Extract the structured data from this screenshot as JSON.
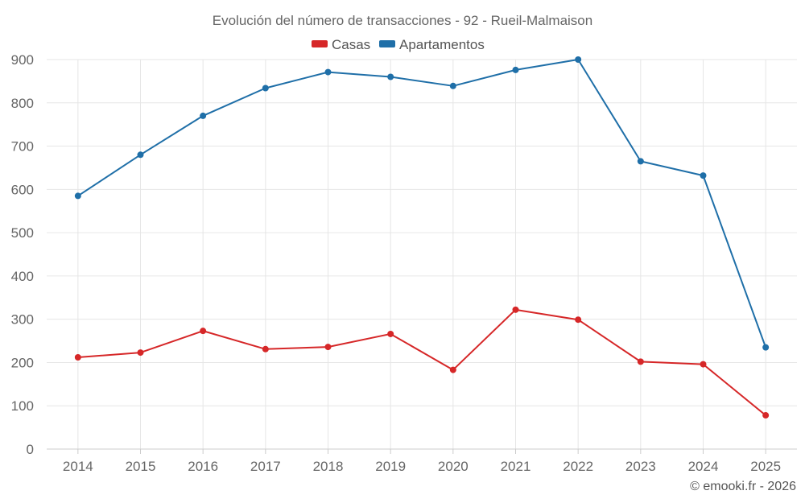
{
  "chart_data": {
    "type": "line",
    "title": "Evolución del número de transacciones - 92 - Rueil-Malmaison",
    "categories": [
      "2014",
      "2015",
      "2016",
      "2017",
      "2018",
      "2019",
      "2020",
      "2021",
      "2022",
      "2023",
      "2024",
      "2025"
    ],
    "series": [
      {
        "name": "Casas",
        "color": "#d62728",
        "values": [
          212,
          223,
          273,
          231,
          236,
          266,
          183,
          322,
          299,
          202,
          196,
          78
        ]
      },
      {
        "name": "Apartamentos",
        "color": "#1f6fa8",
        "values": [
          585,
          680,
          770,
          834,
          871,
          860,
          839,
          876,
          900,
          665,
          632,
          235
        ]
      }
    ],
    "ylim": [
      0,
      900
    ],
    "yticks": [
      0,
      100,
      200,
      300,
      400,
      500,
      600,
      700,
      800,
      900
    ],
    "xlabel": "",
    "ylabel": "",
    "grid": true,
    "legend": "top-center"
  },
  "credit": "© emooki.fr - 2026"
}
